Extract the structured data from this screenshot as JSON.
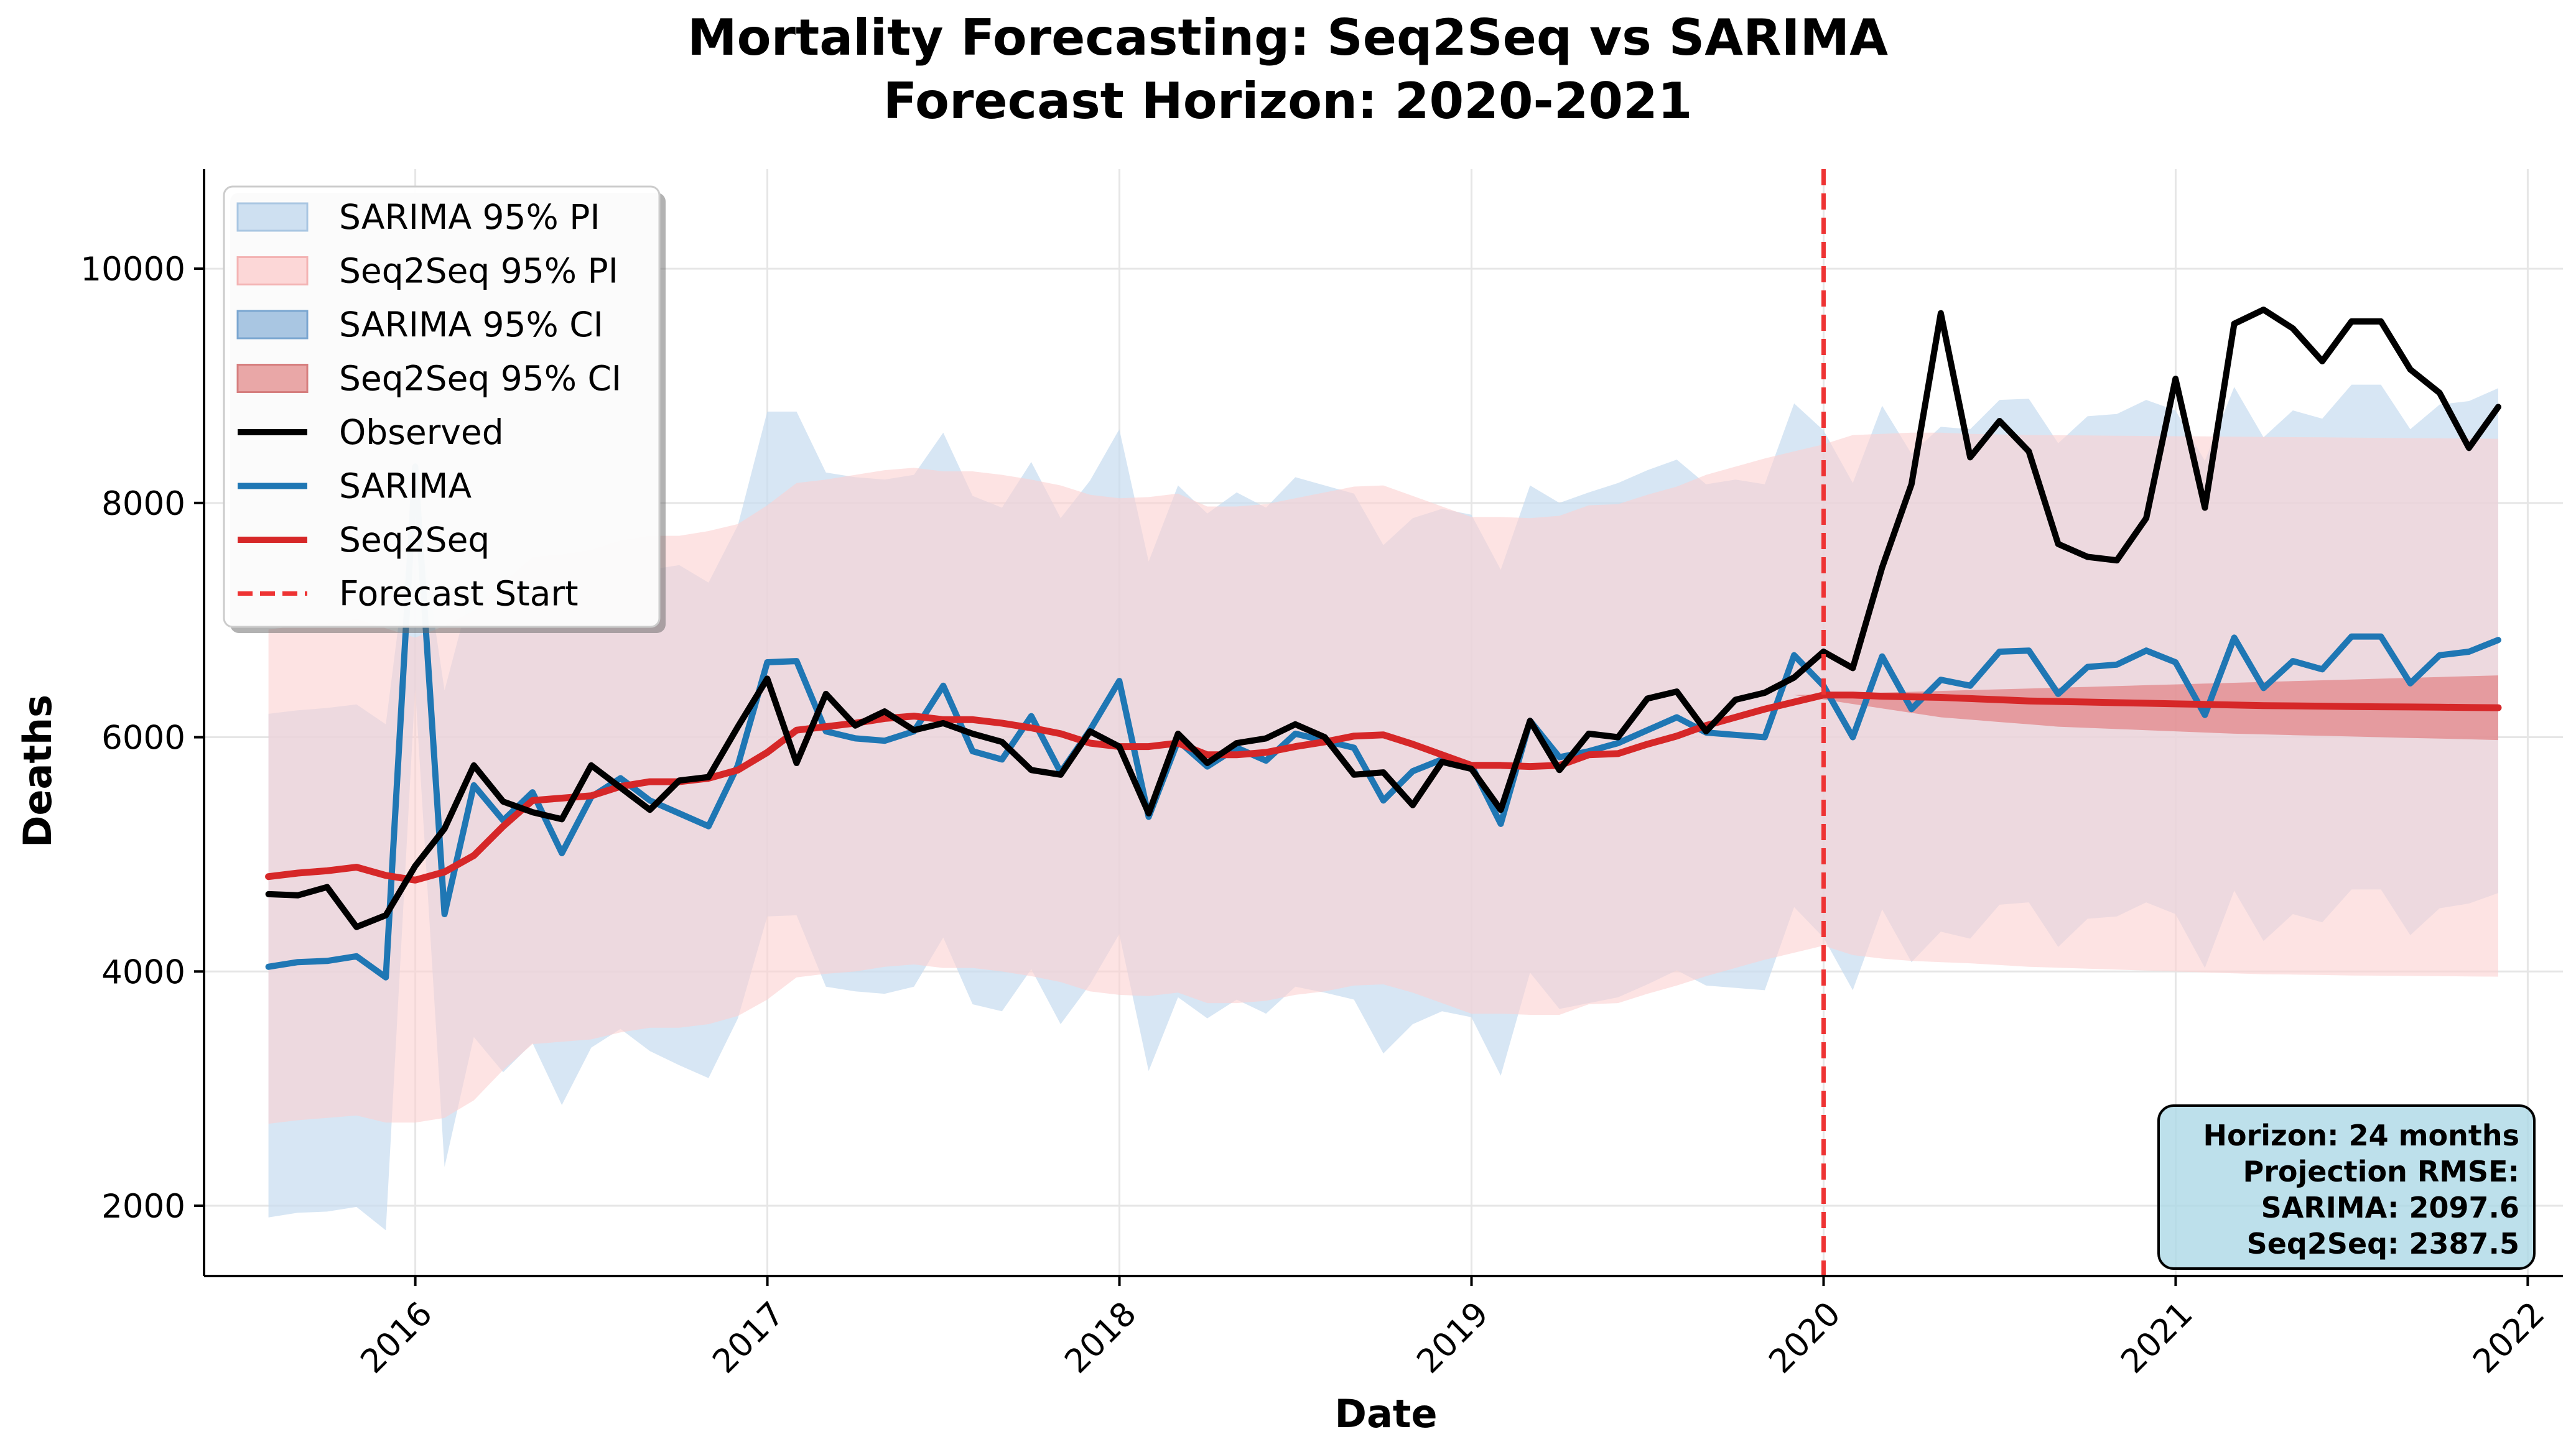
{
  "chart_data": {
    "type": "line",
    "title": "Mortality Forecasting: Seq2Seq vs SARIMA",
    "subtitle": "Forecast Horizon: 2020-2021",
    "xlabel": "Date",
    "ylabel": "Deaths",
    "xlim": [
      2015.4,
      2022.1
    ],
    "ylim": [
      1400,
      10850
    ],
    "x_ticks": [
      2016,
      2017,
      2018,
      2019,
      2020,
      2021,
      2022
    ],
    "x_tick_labels": [
      "2016",
      "2017",
      "2018",
      "2019",
      "2020",
      "2021",
      "2022"
    ],
    "y_ticks": [
      2000,
      4000,
      6000,
      8000,
      10000
    ],
    "y_tick_labels": [
      "2000",
      "4000",
      "6000",
      "8000",
      "10000"
    ],
    "grid": true,
    "legend_position": "upper left",
    "x_start": 2015.583,
    "x_step": 0.0833333,
    "forecast_start": 2020.0,
    "observed": [
      4660,
      4650,
      4720,
      4380,
      4480,
      4900,
      5220,
      5760,
      5450,
      5360,
      5300,
      5760,
      5570,
      5380,
      5630,
      5660,
      6090,
      6500,
      5780,
      6370,
      6100,
      6220,
      6060,
      6120,
      6030,
      5960,
      5720,
      5680,
      6050,
      5920,
      5350,
      6030,
      5780,
      5950,
      5990,
      6110,
      6000,
      5680,
      5700,
      5420,
      5790,
      5730,
      5380,
      6140,
      5720,
      6030,
      6000,
      6330,
      6390,
      6050,
      6320,
      6380,
      6510,
      6730,
      6590,
      7450,
      8160,
      9620,
      8390,
      8700,
      8440,
      7650,
      7540,
      7510,
      7870,
      9060,
      7960,
      9530,
      9650,
      9490,
      9210,
      9550,
      9550,
      9140,
      8940,
      8470,
      8820
    ],
    "sarima": [
      4040,
      4080,
      4090,
      4130,
      3950,
      8310,
      4490,
      5590,
      5290,
      5530,
      5010,
      5490,
      5650,
      5460,
      5350,
      5240,
      5760,
      6640,
      6650,
      6050,
      5990,
      5970,
      6050,
      6440,
      5880,
      5810,
      6180,
      5700,
      6060,
      6480,
      5320,
      5970,
      5750,
      5910,
      5800,
      6030,
      5970,
      5910,
      5460,
      5710,
      5810,
      5760,
      5260,
      6140,
      5830,
      5880,
      5950,
      6060,
      6170,
      6040,
      6020,
      6000,
      6700,
      6440,
      6000,
      6690,
      6240,
      6490,
      6440,
      6730,
      6740,
      6370,
      6600,
      6620,
      6740,
      6640,
      6190,
      6850,
      6420,
      6650,
      6580,
      6860,
      6860,
      6460,
      6700,
      6730,
      6830
    ],
    "seq2seq": [
      4810,
      4840,
      4860,
      4890,
      4820,
      4780,
      4850,
      4990,
      5240,
      5460,
      5480,
      5500,
      5580,
      5620,
      5620,
      5650,
      5720,
      5870,
      6060,
      6090,
      6120,
      6160,
      6180,
      6150,
      6150,
      6120,
      6080,
      6030,
      5950,
      5920,
      5920,
      5950,
      5850,
      5850,
      5870,
      5920,
      5960,
      6010,
      6020,
      5940,
      5850,
      5760,
      5760,
      5750,
      5760,
      5850,
      5860,
      5940,
      6010,
      6100,
      6170,
      6240,
      6300,
      6360,
      6360,
      6350,
      6345,
      6340,
      6330,
      6320,
      6310,
      6305,
      6300,
      6295,
      6290,
      6285,
      6280,
      6275,
      6270,
      6268,
      6265,
      6262,
      6260,
      6258,
      6256,
      6254,
      6252
    ],
    "sarima_pi_upper": [
      6200,
      6230,
      6250,
      6280,
      6110,
      8080,
      6400,
      7350,
      7050,
      7320,
      7120,
      7350,
      7450,
      7430,
      7470,
      7320,
      7810,
      8780,
      8780,
      8260,
      8220,
      8200,
      8240,
      8600,
      8060,
      7960,
      8350,
      7870,
      8190,
      8630,
      7500,
      8150,
      7910,
      8090,
      7960,
      8220,
      8150,
      8080,
      7640,
      7870,
      7950,
      7900,
      7430,
      8150,
      8000,
      8090,
      8170,
      8280,
      8370,
      8160,
      8200,
      8160,
      8850,
      8620,
      8170,
      8830,
      8420,
      8650,
      8630,
      8880,
      8890,
      8510,
      8740,
      8760,
      8880,
      8790,
      8360,
      8990,
      8560,
      8790,
      8720,
      9010,
      9010,
      8630,
      8840,
      8870,
      8980
    ],
    "sarima_pi_lower": [
      1900,
      1940,
      1950,
      1990,
      1790,
      6420,
      2330,
      3440,
      3140,
      3390,
      2860,
      3350,
      3510,
      3320,
      3200,
      3090,
      3600,
      4470,
      4480,
      3870,
      3830,
      3810,
      3870,
      4290,
      3720,
      3660,
      4020,
      3550,
      3890,
      4320,
      3150,
      3780,
      3600,
      3760,
      3640,
      3870,
      3820,
      3760,
      3300,
      3550,
      3660,
      3610,
      3110,
      3990,
      3680,
      3730,
      3780,
      3890,
      4010,
      3880,
      3860,
      3840,
      4550,
      4290,
      3840,
      4530,
      4080,
      4340,
      4280,
      4570,
      4590,
      4210,
      4450,
      4470,
      4590,
      4490,
      4030,
      4690,
      4260,
      4490,
      4420,
      4700,
      4700,
      4310,
      4540,
      4580,
      4670
    ],
    "seq2seq_pi_upper": [
      6920,
      6950,
      6970,
      7010,
      6930,
      6850,
      6950,
      7080,
      7320,
      7540,
      7560,
      7600,
      7680,
      7720,
      7720,
      7760,
      7820,
      7980,
      8170,
      8200,
      8240,
      8280,
      8300,
      8270,
      8270,
      8240,
      8200,
      8150,
      8070,
      8040,
      8050,
      8080,
      7970,
      7970,
      7990,
      8040,
      8090,
      8140,
      8150,
      8060,
      7970,
      7880,
      7880,
      7870,
      7890,
      7980,
      7990,
      8070,
      8140,
      8240,
      8310,
      8380,
      8440,
      8500,
      8580,
      8590,
      8600,
      8600,
      8590,
      8585,
      8580,
      8578,
      8576,
      8574,
      8572,
      8570,
      8568,
      8566,
      8564,
      8562,
      8560,
      8558,
      8556,
      8554,
      8552,
      8550,
      8548
    ],
    "seq2seq_pi_lower": [
      2700,
      2730,
      2750,
      2770,
      2710,
      2710,
      2750,
      2900,
      3160,
      3380,
      3400,
      3420,
      3480,
      3520,
      3520,
      3550,
      3620,
      3760,
      3950,
      3980,
      4000,
      4040,
      4060,
      4030,
      4030,
      4000,
      3960,
      3910,
      3830,
      3800,
      3790,
      3820,
      3730,
      3730,
      3750,
      3800,
      3830,
      3880,
      3890,
      3820,
      3730,
      3640,
      3640,
      3630,
      3630,
      3720,
      3730,
      3810,
      3880,
      3960,
      4030,
      4100,
      4160,
      4220,
      4140,
      4110,
      4090,
      4080,
      4070,
      4055,
      4040,
      4032,
      4024,
      4016,
      4008,
      4000,
      3992,
      3984,
      3976,
      3974,
      3970,
      3966,
      3964,
      3962,
      3960,
      3958,
      3956
    ],
    "seq2seq_ci_upper": [
      6360,
      6367,
      6374,
      6381,
      6388,
      6395,
      6402,
      6409,
      6416,
      6423,
      6430,
      6437,
      6444,
      6451,
      6458,
      6465,
      6472,
      6479,
      6486,
      6493,
      6500,
      6507,
      6514,
      6521,
      6528
    ],
    "seq2seq_ci_lower": [
      6360,
      6322,
      6284,
      6246,
      6208,
      6170,
      6150,
      6130,
      6110,
      6090,
      6080,
      6070,
      6060,
      6050,
      6040,
      6030,
      6024,
      6018,
      6012,
      6006,
      6000,
      5994,
      5988,
      5982,
      5976
    ],
    "sarima_ci_upper": [],
    "sarima_ci_lower": [],
    "legend": [
      "SARIMA 95% PI",
      "Seq2Seq 95% PI",
      "SARIMA 95% CI",
      "Seq2Seq 95% CI",
      "Observed",
      "SARIMA",
      "Seq2Seq",
      "Forecast Start"
    ],
    "annotation": [
      "Horizon: 24 months",
      "Projection RMSE:",
      "SARIMA: 2097.6",
      "Seq2Seq: 2387.5"
    ],
    "colors": {
      "observed": "#000000",
      "sarima": "#1f77b4",
      "seq2seq": "#d62728",
      "forecast_line": "#ee3333",
      "sarima_pi": "#c6dbef",
      "seq2seq_pi": "#fbd0d0",
      "sarima_ci": "#1f77b4",
      "seq2seq_ci": "#d62728",
      "annotation_bg": "#add8e6",
      "grid": "#e6e6e6"
    }
  }
}
